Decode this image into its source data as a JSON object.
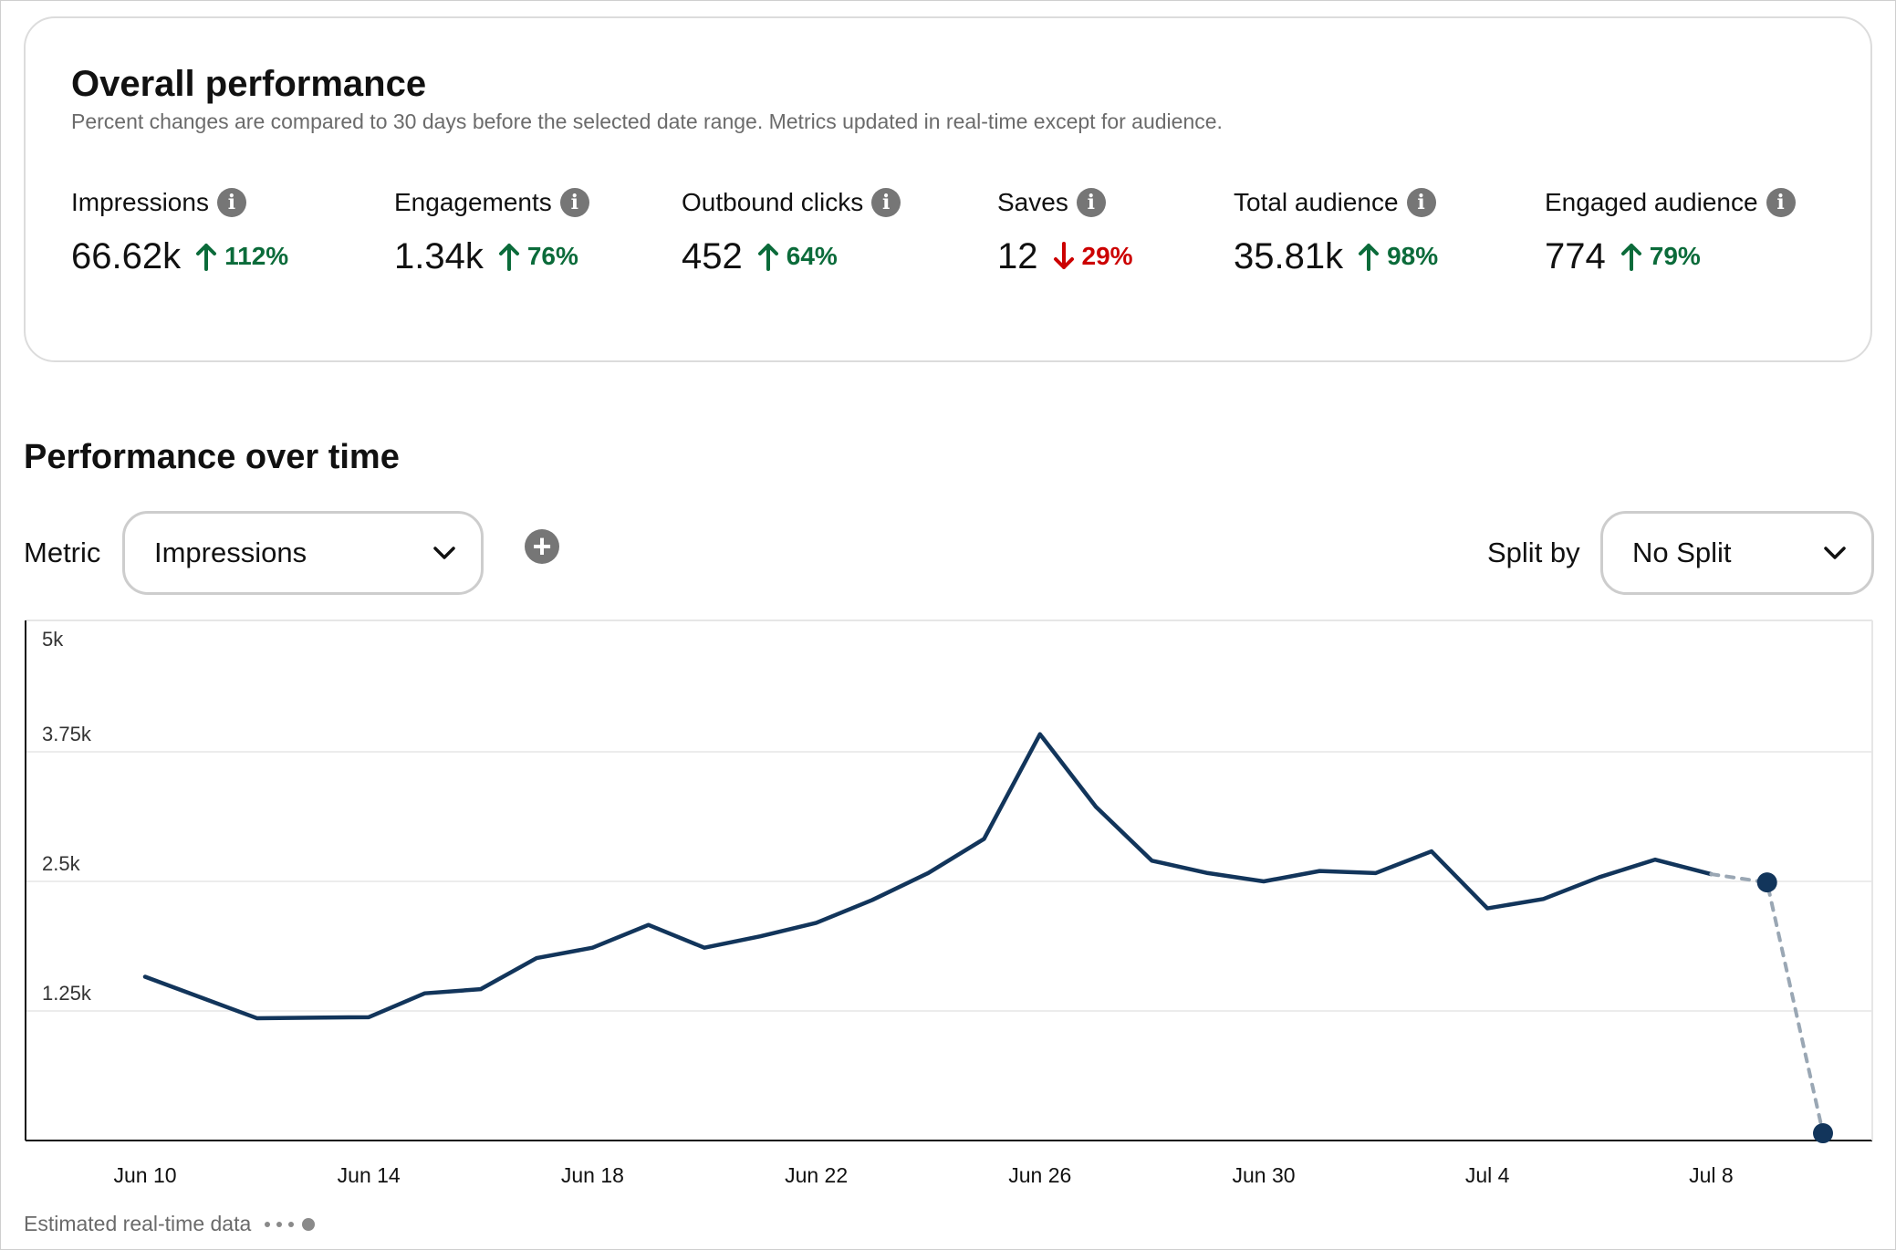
{
  "overall": {
    "title": "Overall performance",
    "subtitle": "Percent changes are compared to 30 days before the selected date range. Metrics updated in real-time except for audience.",
    "metrics": [
      {
        "label": "Impressions",
        "value": "66.62k",
        "change": "112%",
        "direction": "up"
      },
      {
        "label": "Engagements",
        "value": "1.34k",
        "change": "76%",
        "direction": "up"
      },
      {
        "label": "Outbound clicks",
        "value": "452",
        "change": "64%",
        "direction": "up"
      },
      {
        "label": "Saves",
        "value": "12",
        "change": "29%",
        "direction": "down"
      },
      {
        "label": "Total audience",
        "value": "35.81k",
        "change": "98%",
        "direction": "up"
      },
      {
        "label": "Engaged audience",
        "value": "774",
        "change": "79%",
        "direction": "up"
      }
    ],
    "info_icon_glyph": "i"
  },
  "performance": {
    "title": "Performance over time",
    "metric_label": "Metric",
    "metric_selected": "Impressions",
    "add_icon_glyph": "+",
    "split_label": "Split by",
    "split_selected": "No Split"
  },
  "legend": {
    "estimated_label": "Estimated real-time data"
  },
  "colors": {
    "line": "#12355b",
    "estimated": "#9aa7b4",
    "up": "#0b6b3a",
    "down": "#cc0000"
  },
  "chart_data": {
    "type": "line",
    "y_ticks": [
      1250,
      2500,
      3750,
      5000
    ],
    "y_tick_labels": [
      "1.25k",
      "2.5k",
      "3.75k",
      "5k"
    ],
    "ylim": [
      0,
      5000
    ],
    "x_tick_labels": [
      "Jun 10",
      "Jun 14",
      "Jun 18",
      "Jun 22",
      "Jun 26",
      "Jun 30",
      "Jul 4",
      "Jul 8"
    ],
    "x_tick_days": [
      0,
      4,
      8,
      12,
      16,
      20,
      24,
      28
    ],
    "grid": true,
    "series": [
      {
        "x_days": [
          0,
          1,
          2,
          3,
          4,
          5,
          6,
          7,
          8,
          9,
          10,
          11,
          12,
          13,
          14,
          15,
          16,
          17,
          18,
          19,
          20,
          21,
          22,
          23,
          24,
          25,
          26,
          27,
          28
        ],
        "values": [
          1580,
          1380,
          1180,
          1185,
          1190,
          1420,
          1460,
          1760,
          1860,
          2080,
          1860,
          1970,
          2100,
          2320,
          2580,
          2910,
          3920,
          3220,
          2700,
          2580,
          2500,
          2600,
          2580,
          2790,
          2240,
          2330,
          2540,
          2710,
          2570
        ]
      }
    ],
    "estimated": {
      "x_days": [
        28,
        29,
        30
      ],
      "values": [
        2570,
        2490,
        70
      ]
    }
  }
}
